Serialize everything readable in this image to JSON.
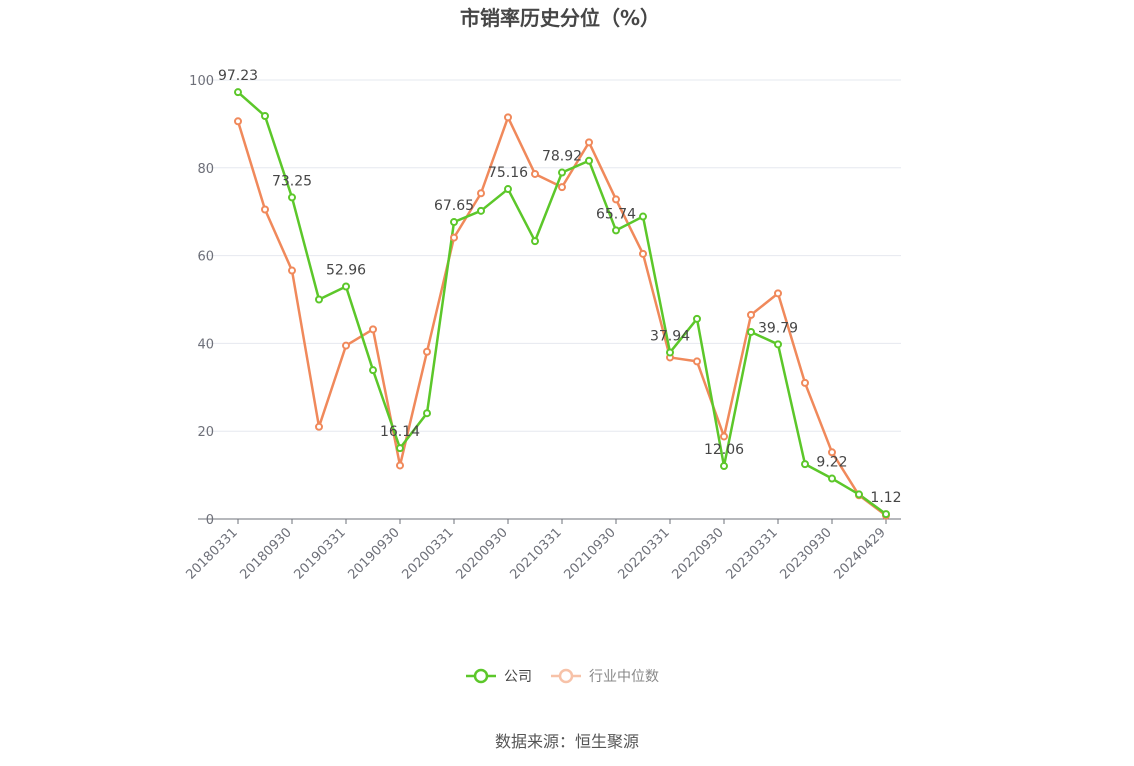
{
  "chart_data": {
    "type": "line",
    "title": "市销率历史分位（%）",
    "source": "数据来源：恒生聚源",
    "ylim": [
      0,
      100
    ],
    "yticks": [
      0,
      20,
      40,
      60,
      80,
      100
    ],
    "x": [
      "20180331",
      "20180630",
      "20180930",
      "20181231",
      "20190331",
      "20190630",
      "20190930",
      "20191231",
      "20200331",
      "20200630",
      "20200930",
      "20201231",
      "20210331",
      "20210630",
      "20210930",
      "20211231",
      "20220331",
      "20220630",
      "20220930",
      "20221231",
      "20230331",
      "20230630",
      "20230930",
      "20231231",
      "20240429"
    ],
    "xtick_labels": [
      "20180331",
      "20180930",
      "20190331",
      "20190930",
      "20200331",
      "20200930",
      "20210331",
      "20210930",
      "20220331",
      "20220930",
      "20230331",
      "20230930",
      "20240429"
    ],
    "series": [
      {
        "name": "公司",
        "color": "#5cc72a",
        "values": [
          97.23,
          91.8,
          73.25,
          50.0,
          52.96,
          33.9,
          16.14,
          24.1,
          67.65,
          70.2,
          75.16,
          63.3,
          78.92,
          81.6,
          65.74,
          68.9,
          37.94,
          45.6,
          12.06,
          42.6,
          39.79,
          12.5,
          9.22,
          5.6,
          1.12
        ]
      },
      {
        "name": "行业中位数",
        "color": "#f0895b",
        "values": [
          90.6,
          70.5,
          56.6,
          21.0,
          39.5,
          43.2,
          12.2,
          38.1,
          64.1,
          74.2,
          91.5,
          78.6,
          75.6,
          85.8,
          72.8,
          60.4,
          36.8,
          35.9,
          18.8,
          46.5,
          51.4,
          31.0,
          15.2,
          5.4,
          0.8
        ]
      }
    ],
    "data_labels": [
      {
        "index": 0,
        "text": "97.23"
      },
      {
        "index": 2,
        "text": "73.25"
      },
      {
        "index": 4,
        "text": "52.96"
      },
      {
        "index": 6,
        "text": "16.14"
      },
      {
        "index": 8,
        "text": "67.65"
      },
      {
        "index": 10,
        "text": "75.16"
      },
      {
        "index": 12,
        "text": "78.92"
      },
      {
        "index": 14,
        "text": "65.74"
      },
      {
        "index": 16,
        "text": "37.94"
      },
      {
        "index": 18,
        "text": "12.06"
      },
      {
        "index": 20,
        "text": "39.79"
      },
      {
        "index": 22,
        "text": "9.22"
      },
      {
        "index": 24,
        "text": "1.12"
      }
    ],
    "legend_position": "bottom-center",
    "grid": true
  }
}
